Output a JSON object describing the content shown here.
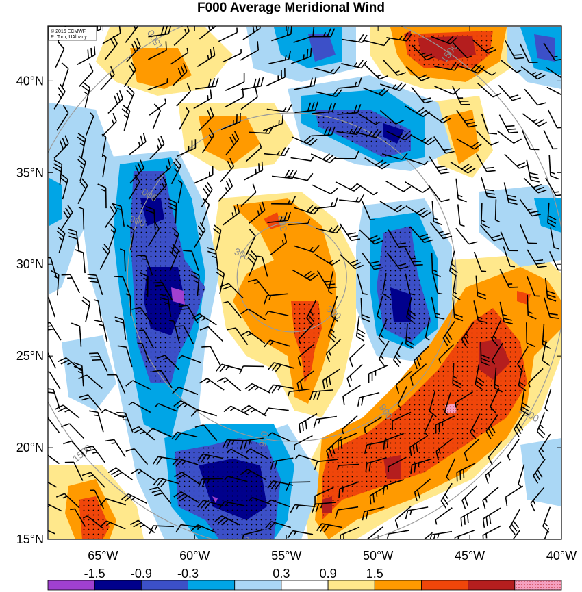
{
  "title": "F000 Average Meridional Wind",
  "credit": {
    "line1": "© 2016 ECMWF",
    "line2": "R. Torn, UAlbany"
  },
  "map": {
    "lon_range": [
      -68,
      -40
    ],
    "lat_range": [
      15,
      43
    ],
    "x_ticks": [
      {
        "value": -65,
        "label": "65°W"
      },
      {
        "value": -60,
        "label": "60°W"
      },
      {
        "value": -55,
        "label": "55°W"
      },
      {
        "value": -50,
        "label": "50°W"
      },
      {
        "value": -45,
        "label": "45°W"
      },
      {
        "value": -40,
        "label": "40°W"
      }
    ],
    "y_ticks": [
      {
        "value": 15,
        "label": "15°N"
      },
      {
        "value": 20,
        "label": "20°N"
      },
      {
        "value": 25,
        "label": "25°N"
      },
      {
        "value": 30,
        "label": "30°N"
      },
      {
        "value": 35,
        "label": "35°N"
      },
      {
        "value": 40,
        "label": "40°N"
      }
    ],
    "range_rings": [
      {
        "value": "300"
      },
      {
        "value": "900"
      },
      {
        "value": "1500"
      }
    ],
    "ring_center": {
      "lon": -54.7,
      "lat": 29.3
    }
  },
  "colorbar": {
    "colors": [
      "#a040d0",
      "#00008c",
      "#3c50c8",
      "#00a5e6",
      "#aad7f5",
      "#ffffff",
      "#ffe88c",
      "#ff9a00",
      "#f0460a",
      "#b41e1e",
      "#f5a0c0"
    ],
    "labels": [
      "-1.5",
      "-0.9",
      "-0.3",
      "0.3",
      "0.9",
      "1.5"
    ]
  },
  "colors": {
    "ring": "#9a9a9a",
    "barb": "#000000"
  }
}
